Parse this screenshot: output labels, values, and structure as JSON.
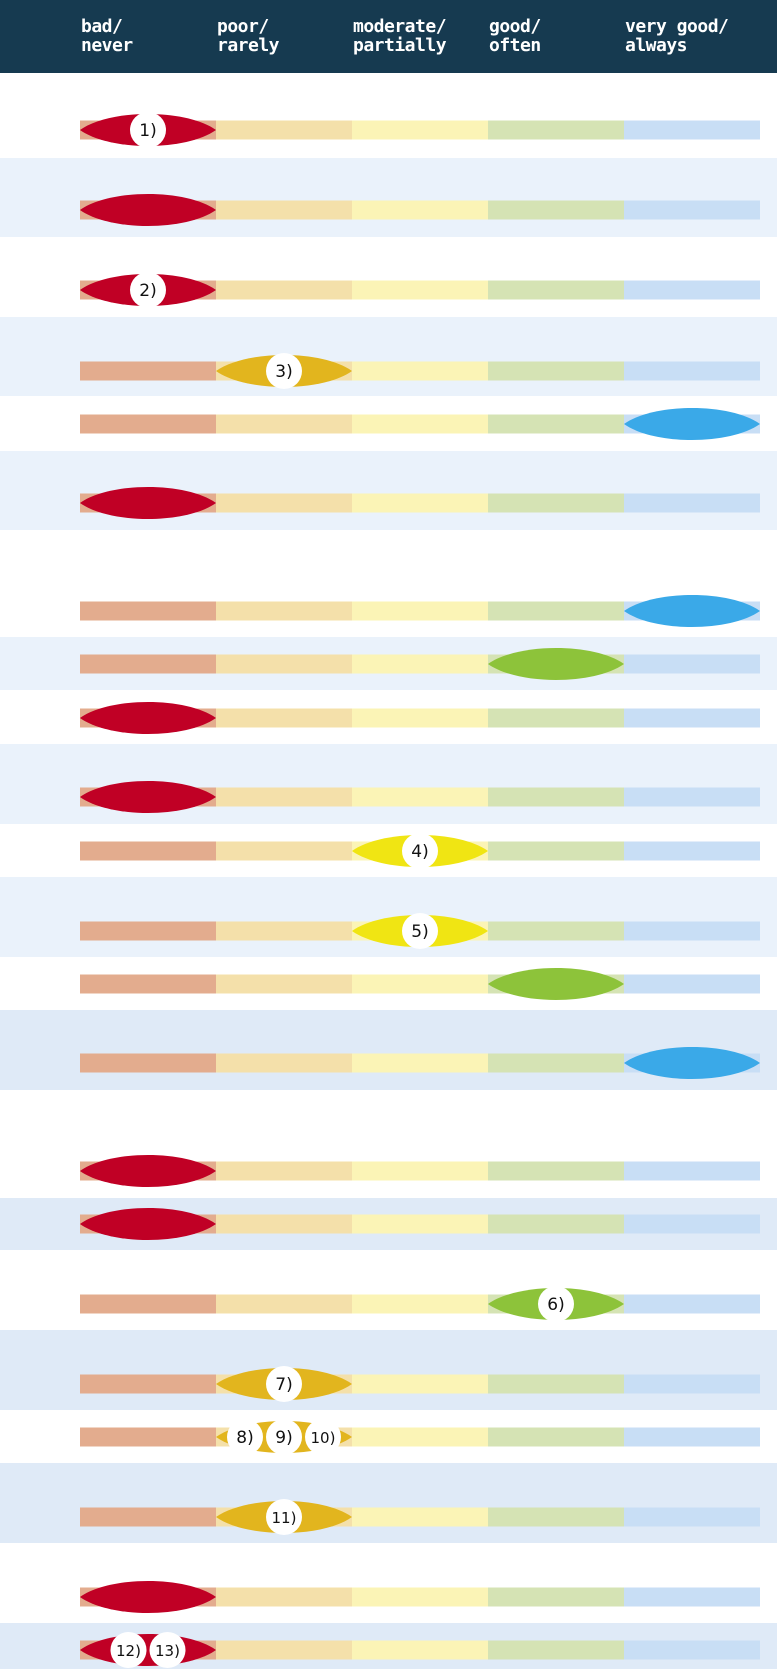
{
  "colors": {
    "header_bg": "#163a50",
    "header_text": "#ffffff",
    "band_light": "#eaf2fb",
    "band_mid": "#dfeaf7",
    "seg_bad": "#e3ac8e",
    "seg_poor": "#f4e0aa",
    "seg_moderate": "#fbf4b6",
    "seg_good": "#d5e3b4",
    "seg_very_good": "#c8def5",
    "marker_bad": "#c00025",
    "marker_poor": "#e2b51e",
    "marker_moderate": "#f0e513",
    "marker_good": "#8dc33a",
    "marker_very_good": "#3aa9e8"
  },
  "header": {
    "columns": [
      {
        "line1": "bad/",
        "line2": "never"
      },
      {
        "line1": "poor/",
        "line2": "rarely"
      },
      {
        "line1": "moderate/",
        "line2": "partially"
      },
      {
        "line1": "good/",
        "line2": "often"
      },
      {
        "line1": "very good/",
        "line2": "always"
      }
    ]
  },
  "chart_data": {
    "type": "rating-scale",
    "categories": [
      "bad/never",
      "poor/rarely",
      "moderate/partially",
      "good/often",
      "very good/always"
    ],
    "rows": [
      {
        "rating": 1,
        "labels": [
          "1)"
        ]
      },
      {
        "rating": 1,
        "labels": []
      },
      {
        "rating": 1,
        "labels": [
          "2)"
        ]
      },
      {
        "rating": 2,
        "labels": [
          "3)"
        ]
      },
      {
        "rating": 5,
        "labels": []
      },
      {
        "rating": 1,
        "labels": []
      },
      {
        "rating": 5,
        "labels": []
      },
      {
        "rating": 4,
        "labels": []
      },
      {
        "rating": 1,
        "labels": []
      },
      {
        "rating": 1,
        "labels": []
      },
      {
        "rating": 3,
        "labels": [
          "4)"
        ]
      },
      {
        "rating": 3,
        "labels": [
          "5)"
        ]
      },
      {
        "rating": 4,
        "labels": []
      },
      {
        "rating": 5,
        "labels": []
      },
      {
        "rating": 1,
        "labels": []
      },
      {
        "rating": 1,
        "labels": []
      },
      {
        "rating": 4,
        "labels": [
          "6)"
        ]
      },
      {
        "rating": 2,
        "labels": [
          "7)"
        ]
      },
      {
        "rating": 2,
        "labels": [
          "8)",
          "9)",
          "10)"
        ]
      },
      {
        "rating": 2,
        "labels": [
          "11)"
        ]
      },
      {
        "rating": 1,
        "labels": []
      },
      {
        "rating": 1,
        "labels": [
          "12)",
          "13)"
        ]
      }
    ]
  }
}
